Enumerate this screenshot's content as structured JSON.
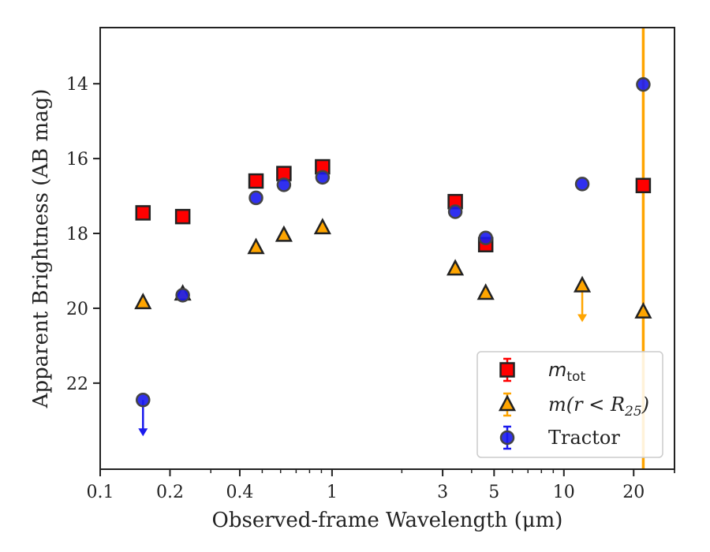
{
  "chart_data": {
    "type": "scatter",
    "title": "",
    "xlabel": "Observed-frame Wavelength (μm)",
    "ylabel": "Apparent Brightness (AB mag)",
    "x_scale": "log",
    "xlim": [
      0.1,
      30
    ],
    "ylim": [
      24.3,
      12.5
    ],
    "y_inverted": true,
    "x_ticks": [
      0.1,
      0.2,
      0.4,
      1,
      3,
      5,
      10,
      20
    ],
    "x_tick_labels": [
      "0.1",
      "0.2",
      "0.4",
      "1",
      "3",
      "5",
      "10",
      "20"
    ],
    "y_ticks": [
      14,
      16,
      18,
      20,
      22
    ],
    "y_tick_labels": [
      "14",
      "16",
      "18",
      "20",
      "22"
    ],
    "grid": false,
    "legend_position": "lower-right",
    "series": [
      {
        "name": "m_tot",
        "legend_label": "m_tot",
        "marker": "square",
        "color": "#ff0000",
        "edge_color": "#222222",
        "points": [
          {
            "x": 0.153,
            "y": 17.45
          },
          {
            "x": 0.227,
            "y": 17.55
          },
          {
            "x": 0.47,
            "y": 16.6
          },
          {
            "x": 0.62,
            "y": 16.4
          },
          {
            "x": 0.91,
            "y": 16.22
          },
          {
            "x": 3.4,
            "y": 17.15
          },
          {
            "x": 4.6,
            "y": 18.3
          },
          {
            "x": 22.0,
            "y": 16.72
          }
        ]
      },
      {
        "name": "m(r < R25)",
        "legend_label": "m(r < R25)",
        "marker": "triangle",
        "color": "#ffa500",
        "edge_color": "#222222",
        "points": [
          {
            "x": 0.153,
            "y": 19.85
          },
          {
            "x": 0.227,
            "y": 19.62
          },
          {
            "x": 0.47,
            "y": 18.38
          },
          {
            "x": 0.62,
            "y": 18.05
          },
          {
            "x": 0.91,
            "y": 17.85
          },
          {
            "x": 3.4,
            "y": 18.95
          },
          {
            "x": 4.6,
            "y": 19.6
          },
          {
            "x": 12.0,
            "y": 19.4,
            "upper_limit": true
          },
          {
            "x": 22.0,
            "y": 20.1
          }
        ]
      },
      {
        "name": "Tractor",
        "legend_label": "Tractor",
        "marker": "circle",
        "color": "#1a1aee",
        "edge_color": "#444444",
        "points": [
          {
            "x": 0.153,
            "y": 22.45,
            "upper_limit": true
          },
          {
            "x": 0.227,
            "y": 19.65
          },
          {
            "x": 0.47,
            "y": 17.05
          },
          {
            "x": 0.62,
            "y": 16.7
          },
          {
            "x": 0.91,
            "y": 16.5
          },
          {
            "x": 3.4,
            "y": 17.42
          },
          {
            "x": 4.6,
            "y": 18.12
          },
          {
            "x": 12.0,
            "y": 16.68
          },
          {
            "x": 22.0,
            "y": 14.02
          }
        ]
      }
    ],
    "annotations": {
      "w4_vertical_error_x": 22.0,
      "w4_vertical_error_color": "#ffa500"
    }
  }
}
